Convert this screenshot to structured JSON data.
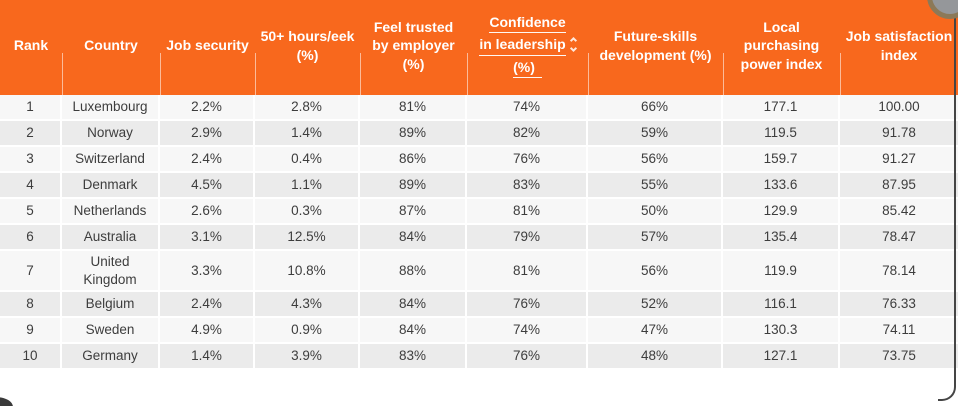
{
  "colors": {
    "header_bg": "#F8681D",
    "header_text": "#ffffff",
    "row_light": "#f7f7f7",
    "row_dark": "#ebebeb",
    "body_text": "#3d3d3d",
    "frame_border": "#454545"
  },
  "header": {
    "columns": [
      {
        "label": "Rank"
      },
      {
        "label": "Country"
      },
      {
        "label": "Job security"
      },
      {
        "label": "50+ hours/eek (%)"
      },
      {
        "label": "Feel trusted by employer (%)"
      },
      {
        "label": "Confidence in leadership (%)",
        "lines": [
          "Confidence",
          "in leadership",
          "(%)"
        ],
        "sorted": true,
        "sort_icon": "up-down-chevrons"
      },
      {
        "label": "Future-skills development (%)"
      },
      {
        "label": "Local purchasing power index"
      },
      {
        "label": "Job satisfaction index"
      }
    ]
  },
  "table": {
    "rows": [
      [
        "1",
        "Luxembourg",
        "2.2%",
        "2.8%",
        "81%",
        "74%",
        "66%",
        "177.1",
        "100.00"
      ],
      [
        "2",
        "Norway",
        "2.9%",
        "1.4%",
        "89%",
        "82%",
        "59%",
        "119.5",
        "91.78"
      ],
      [
        "3",
        "Switzerland",
        "2.4%",
        "0.4%",
        "86%",
        "76%",
        "56%",
        "159.7",
        "91.27"
      ],
      [
        "4",
        "Denmark",
        "4.5%",
        "1.1%",
        "89%",
        "83%",
        "55%",
        "133.6",
        "87.95"
      ],
      [
        "5",
        "Netherlands",
        "2.6%",
        "0.3%",
        "87%",
        "81%",
        "50%",
        "129.9",
        "85.42"
      ],
      [
        "6",
        "Australia",
        "3.1%",
        "12.5%",
        "84%",
        "79%",
        "57%",
        "135.4",
        "78.47"
      ],
      [
        "7",
        "United Kingdom",
        "3.3%",
        "10.8%",
        "88%",
        "81%",
        "56%",
        "119.9",
        "78.14"
      ],
      [
        "8",
        "Belgium",
        "2.4%",
        "4.3%",
        "84%",
        "76%",
        "52%",
        "116.1",
        "76.33"
      ],
      [
        "9",
        "Sweden",
        "4.9%",
        "0.9%",
        "84%",
        "74%",
        "47%",
        "130.3",
        "74.11"
      ],
      [
        "10",
        "Germany",
        "1.4%",
        "3.9%",
        "83%",
        "76%",
        "48%",
        "127.1",
        "73.75"
      ]
    ]
  }
}
